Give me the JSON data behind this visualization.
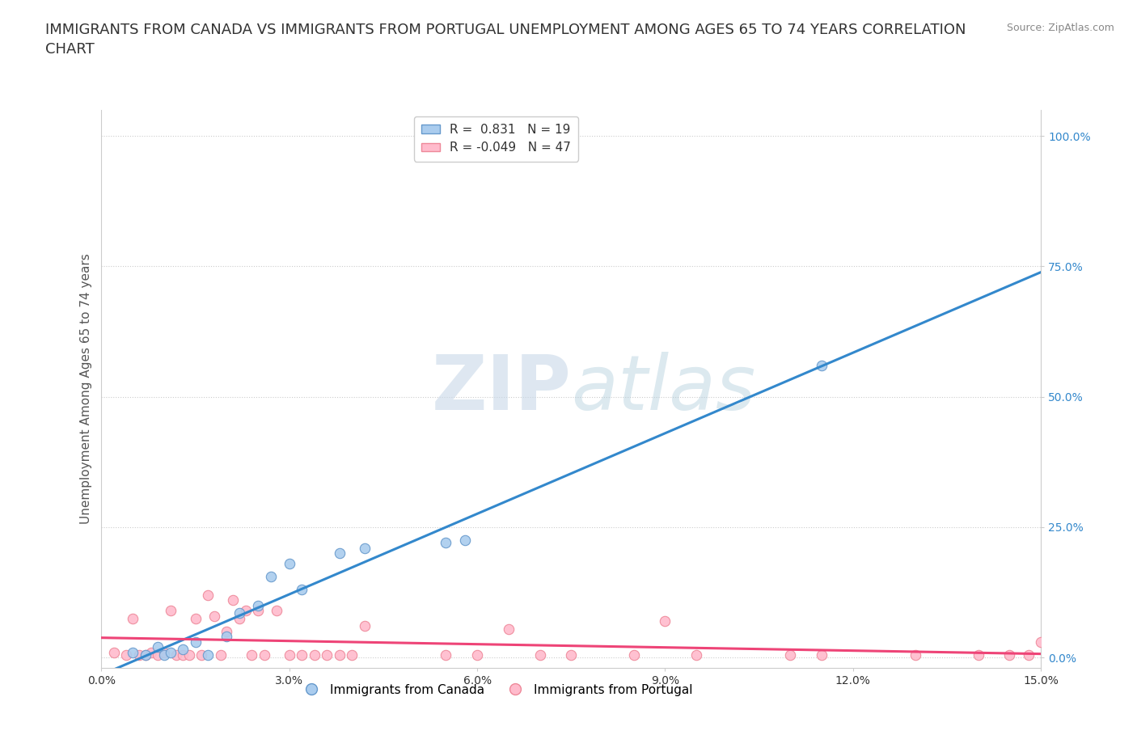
{
  "title": "IMMIGRANTS FROM CANADA VS IMMIGRANTS FROM PORTUGAL UNEMPLOYMENT AMONG AGES 65 TO 74 YEARS CORRELATION\nCHART",
  "source": "Source: ZipAtlas.com",
  "ylabel": "Unemployment Among Ages 65 to 74 years",
  "xlabel": "",
  "xlim": [
    0.0,
    0.15
  ],
  "ylim": [
    -0.02,
    1.05
  ],
  "yticks": [
    0.0,
    0.25,
    0.5,
    0.75,
    1.0
  ],
  "ytick_labels": [
    "0.0%",
    "25.0%",
    "50.0%",
    "75.0%",
    "100.0%"
  ],
  "xticks": [
    0.0,
    0.03,
    0.06,
    0.09,
    0.12,
    0.15
  ],
  "xtick_labels": [
    "0.0%",
    "3.0%",
    "6.0%",
    "9.0%",
    "12.0%",
    "15.0%"
  ],
  "canada_color": "#aaccee",
  "canada_edge_color": "#6699cc",
  "portugal_color": "#ffbbcc",
  "portugal_edge_color": "#ee8899",
  "canada_line_color": "#3388cc",
  "portugal_line_color": "#ee4477",
  "canada_R": 0.831,
  "canada_N": 19,
  "portugal_R": -0.049,
  "portugal_N": 47,
  "watermark_color": "#d8e8f0",
  "canada_x": [
    0.005,
    0.007,
    0.009,
    0.01,
    0.011,
    0.013,
    0.015,
    0.017,
    0.02,
    0.022,
    0.025,
    0.027,
    0.03,
    0.032,
    0.038,
    0.042,
    0.055,
    0.058,
    0.115
  ],
  "canada_y": [
    0.01,
    0.005,
    0.02,
    0.005,
    0.01,
    0.015,
    0.03,
    0.005,
    0.04,
    0.085,
    0.1,
    0.155,
    0.18,
    0.13,
    0.2,
    0.21,
    0.22,
    0.225,
    0.56
  ],
  "portugal_x": [
    0.002,
    0.004,
    0.005,
    0.006,
    0.007,
    0.008,
    0.009,
    0.01,
    0.011,
    0.012,
    0.013,
    0.014,
    0.015,
    0.016,
    0.017,
    0.018,
    0.019,
    0.02,
    0.021,
    0.022,
    0.023,
    0.024,
    0.025,
    0.026,
    0.028,
    0.03,
    0.032,
    0.034,
    0.036,
    0.038,
    0.04,
    0.042,
    0.055,
    0.06,
    0.065,
    0.07,
    0.075,
    0.085,
    0.09,
    0.095,
    0.11,
    0.115,
    0.13,
    0.14,
    0.145,
    0.148,
    0.15
  ],
  "portugal_y": [
    0.01,
    0.005,
    0.075,
    0.005,
    0.005,
    0.01,
    0.005,
    0.01,
    0.09,
    0.005,
    0.005,
    0.005,
    0.075,
    0.005,
    0.12,
    0.08,
    0.005,
    0.05,
    0.11,
    0.075,
    0.09,
    0.005,
    0.09,
    0.005,
    0.09,
    0.005,
    0.005,
    0.005,
    0.005,
    0.005,
    0.005,
    0.06,
    0.005,
    0.005,
    0.055,
    0.005,
    0.005,
    0.005,
    0.07,
    0.005,
    0.005,
    0.005,
    0.005,
    0.005,
    0.005,
    0.005,
    0.03
  ],
  "background_color": "#ffffff",
  "grid_color": "#cccccc",
  "title_fontsize": 13,
  "axis_label_fontsize": 11,
  "tick_fontsize": 10,
  "legend_fontsize": 11,
  "canada_trend_x": [
    0.0,
    0.15
  ],
  "portugal_trend_x": [
    0.0,
    0.15
  ]
}
